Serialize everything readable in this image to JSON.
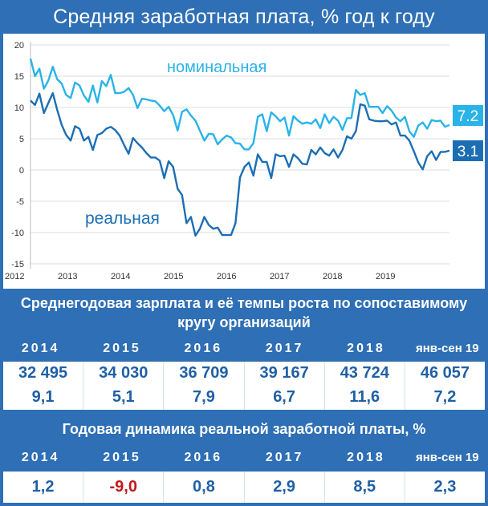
{
  "title": "Средняя заработная плата, % год к году",
  "chart_data": {
    "type": "line",
    "x_ticks": [
      "2012",
      "2013",
      "2014",
      "2015",
      "2016",
      "2017",
      "2018",
      "2019"
    ],
    "y_ticks": [
      "20",
      "15",
      "10",
      "5",
      "0",
      "-5",
      "-10",
      "-15"
    ],
    "ylim": [
      -15,
      20
    ],
    "series": [
      {
        "name": "номинальная",
        "color": "#29b3e8",
        "end_label": "7.2",
        "values": [
          17.8,
          15,
          16.2,
          13,
          14.3,
          16.5,
          14.5,
          13.8,
          12,
          11.5,
          14,
          13.5,
          11.9,
          10.9,
          13.5,
          10.8,
          14.2,
          13.4,
          15.2,
          12.3,
          12.3,
          12.5,
          13.1,
          12,
          9.9,
          11.4,
          11.3,
          11.1,
          11,
          10.3,
          9.4,
          10.1,
          8.8,
          6.3,
          9.3,
          9.7,
          8.7,
          7.9,
          6.3,
          4.7,
          5.8,
          5.7,
          4.1,
          4.9,
          5.5,
          5.2,
          4.3,
          4.2,
          3.3,
          3.3,
          4.3,
          8.5,
          8.9,
          6.2,
          9.2,
          8.6,
          7.8,
          8.4,
          5.5,
          8.6,
          7.9,
          7.4,
          7.6,
          7.4,
          8.1,
          6.7,
          8.9,
          7.5,
          8.5,
          7.9,
          6.4,
          8.3,
          8.3,
          12.8,
          12,
          12.3,
          10.1,
          10.1,
          10.1,
          9.1,
          10.2,
          9.5,
          8.4,
          7.8,
          8.5,
          6.2,
          5.3,
          7.1,
          7.6,
          6.6,
          8,
          7.8,
          7.9,
          6.9,
          7.2
        ]
      },
      {
        "name": "реальная",
        "color": "#1c6eb3",
        "end_label": "3.1",
        "values": [
          11.1,
          10.4,
          12.2,
          9.1,
          10.7,
          12.3,
          9.6,
          7.2,
          5.6,
          4.7,
          7,
          6.6,
          4.7,
          5.3,
          3.2,
          5.6,
          5.9,
          6.6,
          6.9,
          6.4,
          5.5,
          4,
          2.6,
          5.1,
          4.3,
          3.6,
          2.7,
          2,
          2,
          1.5,
          -1.3,
          1.4,
          0.5,
          -3,
          -4,
          -8.5,
          -7.5,
          -10.5,
          -9.4,
          -7.5,
          -8.8,
          -9.4,
          -9.2,
          -10.4,
          -10.4,
          -10.4,
          -8.5,
          -1.2,
          0.5,
          1.2,
          -0.9,
          2.5,
          1.3,
          1.3,
          -1.3,
          2.5,
          2.2,
          2.3,
          0.5,
          2.5,
          1.9,
          1,
          0.9,
          3.2,
          2.5,
          3.6,
          2.7,
          2.3,
          3.3,
          2,
          3.2,
          5.4,
          5,
          6.2,
          10.5,
          10.3,
          8.1,
          7.9,
          7.8,
          7.8,
          7.9,
          7.3,
          7.6,
          5.5,
          5.5,
          4.7,
          3,
          1.2,
          0.1,
          2.2,
          3,
          1.6,
          2.9,
          2.9,
          3.1
        ]
      }
    ],
    "grid": true
  },
  "table1": {
    "title": "Среднегодовая зарплата и её темпы роста по сопоставимому кругу организаций",
    "years": [
      "2014",
      "2015",
      "2016",
      "2017",
      "2018",
      "янв-сен 19"
    ],
    "wages": [
      "32 495",
      "34 030",
      "36 709",
      "39 167",
      "43 724",
      "46 057"
    ],
    "growth": [
      "9,1",
      "5,1",
      "7,9",
      "6,7",
      "11,6",
      "7,2"
    ]
  },
  "table2": {
    "title": "Годовая динамика реальной заработной платы, %",
    "years": [
      "2014",
      "2015",
      "2016",
      "2017",
      "2018",
      "янв-сен 19"
    ],
    "values": [
      "1,2",
      "-9,0",
      "0,8",
      "2,9",
      "8,5",
      "2,3"
    ]
  }
}
